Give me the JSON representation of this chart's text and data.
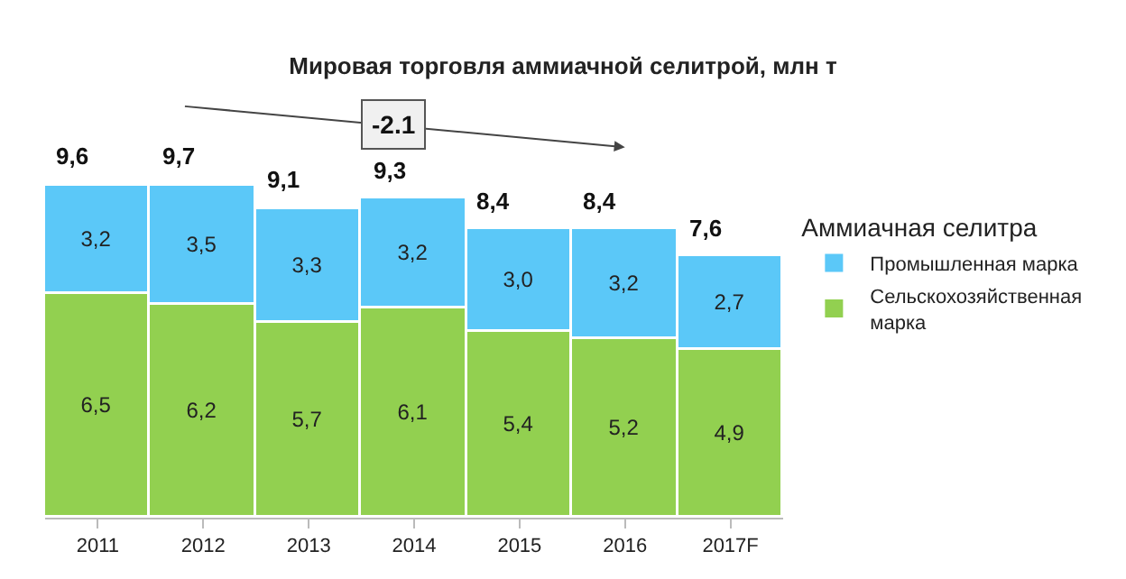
{
  "chart_data": {
    "type": "bar",
    "title": "Мировая торговля аммиачной селитрой, млн т",
    "categories": [
      "2011",
      "2012",
      "2013",
      "2014",
      "2015",
      "2016",
      "2017F"
    ],
    "stacked": true,
    "legend": "right",
    "legend_title": "Аммиачная селитра",
    "series": [
      {
        "name": "Сельскохозяйственная марка",
        "color": "#92d050",
        "values": [
          6.5,
          6.2,
          5.7,
          6.1,
          5.4,
          5.2,
          4.9
        ],
        "value_labels": [
          "6,5",
          "6,2",
          "5,7",
          "6,1",
          "5,4",
          "5,2",
          "4,9"
        ]
      },
      {
        "name": "Промышленная марка",
        "color": "#5bc8f8",
        "values": [
          3.2,
          3.5,
          3.3,
          3.2,
          3.0,
          3.2,
          2.7
        ],
        "value_labels": [
          "3,2",
          "3,5",
          "3,3",
          "3,2",
          "3,0",
          "3,2",
          "2,7"
        ]
      }
    ],
    "totals": [
      "9,6",
      "9,7",
      "9,1",
      "9,3",
      "8,4",
      "8,4",
      "7,6"
    ],
    "tick_labels": "x",
    "annotations": [
      "-2.1"
    ]
  }
}
